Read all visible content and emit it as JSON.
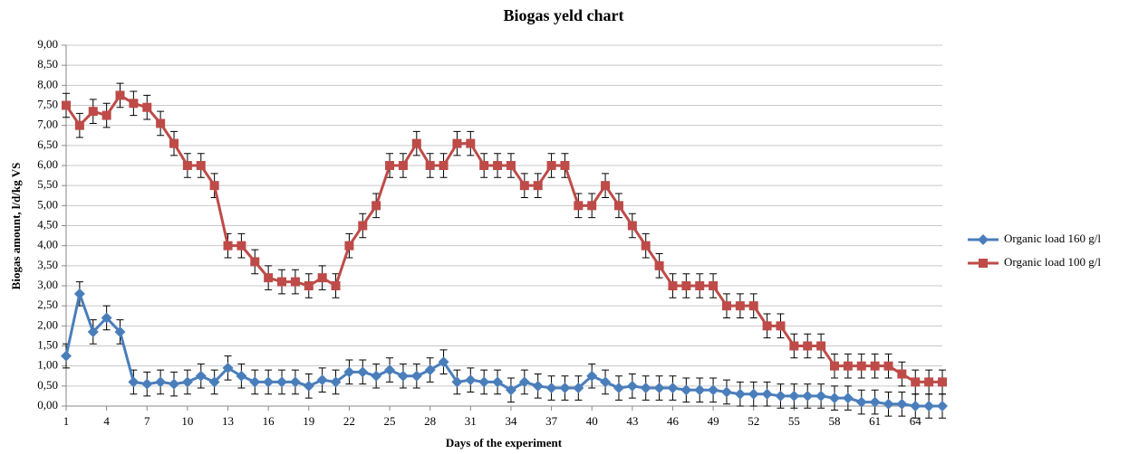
{
  "chart_data": {
    "type": "line",
    "title": "Biogas yeld chart",
    "x_label": "Days of the experiment",
    "y_label": "Biogas amount, l/d/kg VS",
    "x": [
      1,
      2,
      3,
      4,
      5,
      6,
      7,
      8,
      9,
      10,
      11,
      12,
      13,
      14,
      15,
      16,
      17,
      18,
      19,
      20,
      21,
      22,
      23,
      24,
      25,
      26,
      27,
      28,
      29,
      30,
      31,
      32,
      33,
      34,
      35,
      36,
      37,
      38,
      39,
      40,
      41,
      42,
      43,
      44,
      45,
      46,
      47,
      48,
      49,
      50,
      51,
      52,
      53,
      54,
      55,
      56,
      57,
      58,
      59,
      60,
      61,
      62,
      63,
      64,
      65,
      66
    ],
    "xlim": [
      1,
      66
    ],
    "xticks": [
      1,
      4,
      7,
      10,
      13,
      16,
      19,
      22,
      25,
      28,
      31,
      34,
      37,
      40,
      43,
      46,
      49,
      52,
      55,
      58,
      61,
      64
    ],
    "ylim": [
      0,
      9
    ],
    "yticks": [
      {
        "value": 0,
        "label": "0,00"
      },
      {
        "value": 0.5,
        "label": "0,50"
      },
      {
        "value": 1,
        "label": "1,00"
      },
      {
        "value": 1.5,
        "label": "1,50"
      },
      {
        "value": 2,
        "label": "2,00"
      },
      {
        "value": 2.5,
        "label": "2,50"
      },
      {
        "value": 3,
        "label": "3,00"
      },
      {
        "value": 3.5,
        "label": "3,50"
      },
      {
        "value": 4,
        "label": "4,00"
      },
      {
        "value": 4.5,
        "label": "4,50"
      },
      {
        "value": 5,
        "label": "5,00"
      },
      {
        "value": 5.5,
        "label": "5,50"
      },
      {
        "value": 6,
        "label": "6,00"
      },
      {
        "value": 6.5,
        "label": "6,50"
      },
      {
        "value": 7,
        "label": "7,00"
      },
      {
        "value": 7.5,
        "label": "7,50"
      },
      {
        "value": 8,
        "label": "8,00"
      },
      {
        "value": 8.5,
        "label": "8,50"
      },
      {
        "value": 9,
        "label": "9,00"
      }
    ],
    "grid": true,
    "legend": "right",
    "series": [
      {
        "name": "Organic load 160 g/l",
        "color": "#4a7ebb",
        "marker": "diamond",
        "error": 0.3,
        "values": [
          1.25,
          2.8,
          1.85,
          2.2,
          1.85,
          0.6,
          0.55,
          0.6,
          0.55,
          0.6,
          0.75,
          0.6,
          0.95,
          0.75,
          0.6,
          0.6,
          0.6,
          0.6,
          0.5,
          0.65,
          0.6,
          0.85,
          0.85,
          0.75,
          0.9,
          0.75,
          0.75,
          0.9,
          1.1,
          0.6,
          0.65,
          0.6,
          0.6,
          0.4,
          0.6,
          0.5,
          0.45,
          0.45,
          0.45,
          0.75,
          0.6,
          0.45,
          0.5,
          0.45,
          0.45,
          0.45,
          0.4,
          0.4,
          0.4,
          0.35,
          0.3,
          0.3,
          0.3,
          0.25,
          0.25,
          0.25,
          0.25,
          0.2,
          0.2,
          0.1,
          0.1,
          0.05,
          0.05,
          0,
          0,
          0
        ]
      },
      {
        "name": "Organic load 100 g/l",
        "color": "#be4b48",
        "marker": "square",
        "error": 0.3,
        "values": [
          7.5,
          7.0,
          7.35,
          7.25,
          7.75,
          7.55,
          7.45,
          7.05,
          6.55,
          6.0,
          6.0,
          5.5,
          4.0,
          4.0,
          3.6,
          3.2,
          3.1,
          3.1,
          3.0,
          3.2,
          3.0,
          4.0,
          4.5,
          5.0,
          6.0,
          6.0,
          6.55,
          6.0,
          6.0,
          6.55,
          6.55,
          6.0,
          6.0,
          6.0,
          5.5,
          5.5,
          6.0,
          6.0,
          5.0,
          5.0,
          5.5,
          5.0,
          4.5,
          4.0,
          3.5,
          3.0,
          3.0,
          3.0,
          3.0,
          2.5,
          2.5,
          2.5,
          2.0,
          2.0,
          1.5,
          1.5,
          1.5,
          1.0,
          1.0,
          1.0,
          1.0,
          1.0,
          0.8,
          0.6,
          0.6,
          0.6
        ]
      }
    ]
  }
}
